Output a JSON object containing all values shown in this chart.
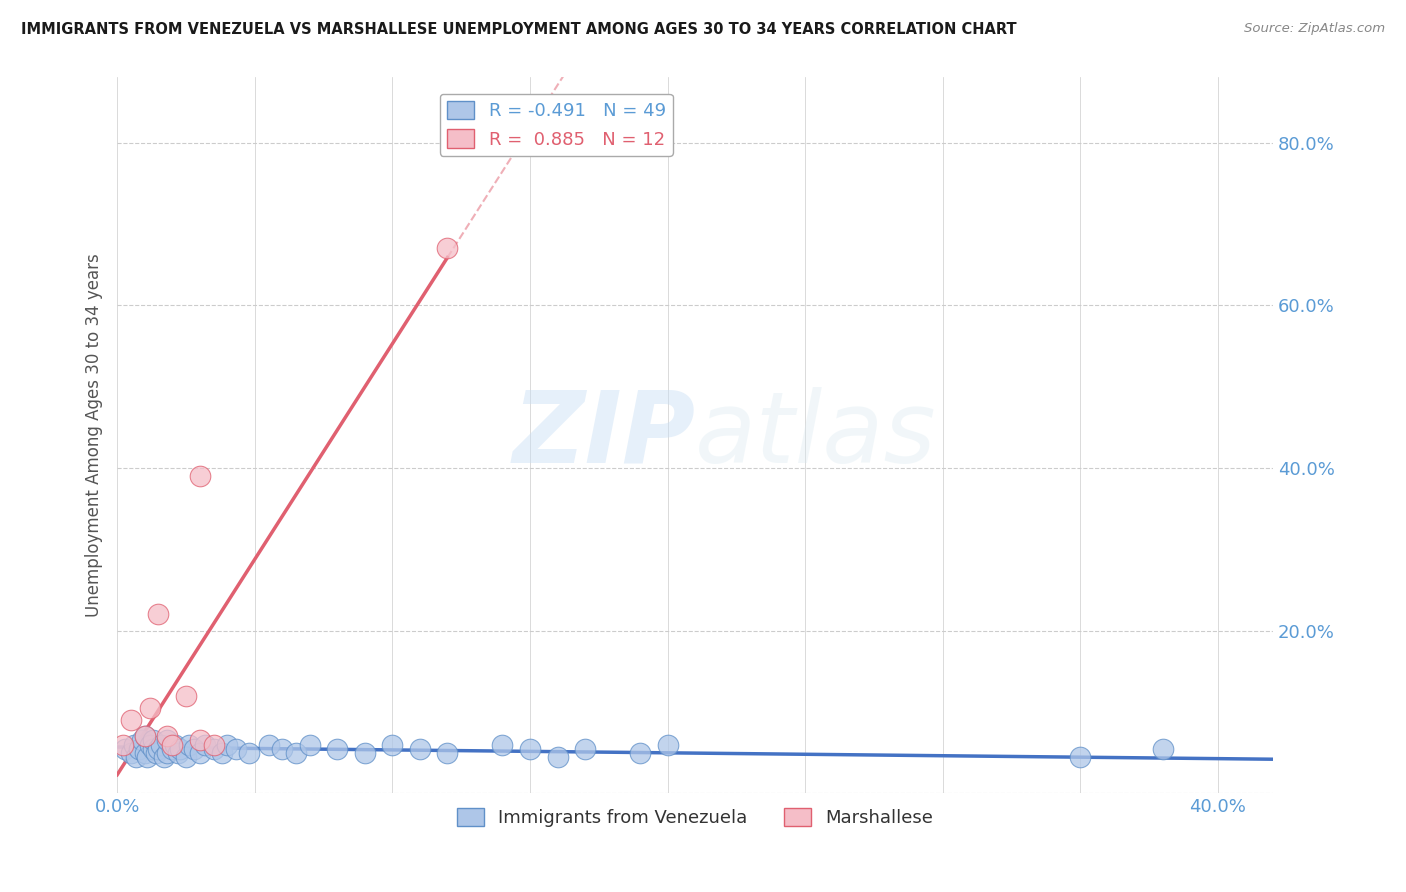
{
  "title": "IMMIGRANTS FROM VENEZUELA VS MARSHALLESE UNEMPLOYMENT AMONG AGES 30 TO 34 YEARS CORRELATION CHART",
  "source": "Source: ZipAtlas.com",
  "ylabel": "Unemployment Among Ages 30 to 34 years",
  "xlim": [
    0.0,
    0.42
  ],
  "ylim": [
    0.0,
    0.88
  ],
  "xticks": [
    0.0,
    0.05,
    0.1,
    0.15,
    0.2,
    0.25,
    0.3,
    0.35,
    0.4
  ],
  "yticks_right": [
    0.0,
    0.2,
    0.4,
    0.6,
    0.8
  ],
  "ytick_right_labels": [
    "",
    "20.0%",
    "40.0%",
    "60.0%",
    "80.0%"
  ],
  "blue_R": -0.491,
  "blue_N": 49,
  "pink_R": 0.885,
  "pink_N": 12,
  "blue_scatter_x": [
    0.003,
    0.005,
    0.006,
    0.007,
    0.008,
    0.009,
    0.01,
    0.01,
    0.011,
    0.012,
    0.013,
    0.013,
    0.014,
    0.015,
    0.016,
    0.017,
    0.018,
    0.018,
    0.02,
    0.021,
    0.022,
    0.023,
    0.025,
    0.026,
    0.028,
    0.03,
    0.032,
    0.035,
    0.038,
    0.04,
    0.043,
    0.048,
    0.055,
    0.06,
    0.065,
    0.07,
    0.08,
    0.09,
    0.1,
    0.11,
    0.12,
    0.14,
    0.15,
    0.16,
    0.17,
    0.19,
    0.2,
    0.35,
    0.38
  ],
  "blue_scatter_y": [
    0.055,
    0.05,
    0.06,
    0.045,
    0.055,
    0.065,
    0.05,
    0.07,
    0.045,
    0.06,
    0.055,
    0.065,
    0.05,
    0.055,
    0.06,
    0.045,
    0.05,
    0.065,
    0.055,
    0.06,
    0.05,
    0.055,
    0.045,
    0.06,
    0.055,
    0.05,
    0.06,
    0.055,
    0.05,
    0.06,
    0.055,
    0.05,
    0.06,
    0.055,
    0.05,
    0.06,
    0.055,
    0.05,
    0.06,
    0.055,
    0.05,
    0.06,
    0.055,
    0.045,
    0.055,
    0.05,
    0.06,
    0.045,
    0.055
  ],
  "pink_scatter_x": [
    0.002,
    0.005,
    0.01,
    0.012,
    0.015,
    0.018,
    0.02,
    0.025,
    0.03,
    0.03,
    0.035,
    0.12
  ],
  "pink_scatter_y": [
    0.06,
    0.09,
    0.07,
    0.105,
    0.22,
    0.07,
    0.06,
    0.12,
    0.39,
    0.065,
    0.06,
    0.67
  ],
  "blue_line_color": "#4472c4",
  "pink_line_color": "#e06070",
  "blue_scatter_color": "#aec6e8",
  "pink_scatter_color": "#f5bec8",
  "blue_scatter_edge": "#6090c8",
  "pink_scatter_edge": "#e06070",
  "watermark_zip": "ZIP",
  "watermark_atlas": "atlas",
  "background_color": "#ffffff",
  "grid_color": "#cccccc"
}
